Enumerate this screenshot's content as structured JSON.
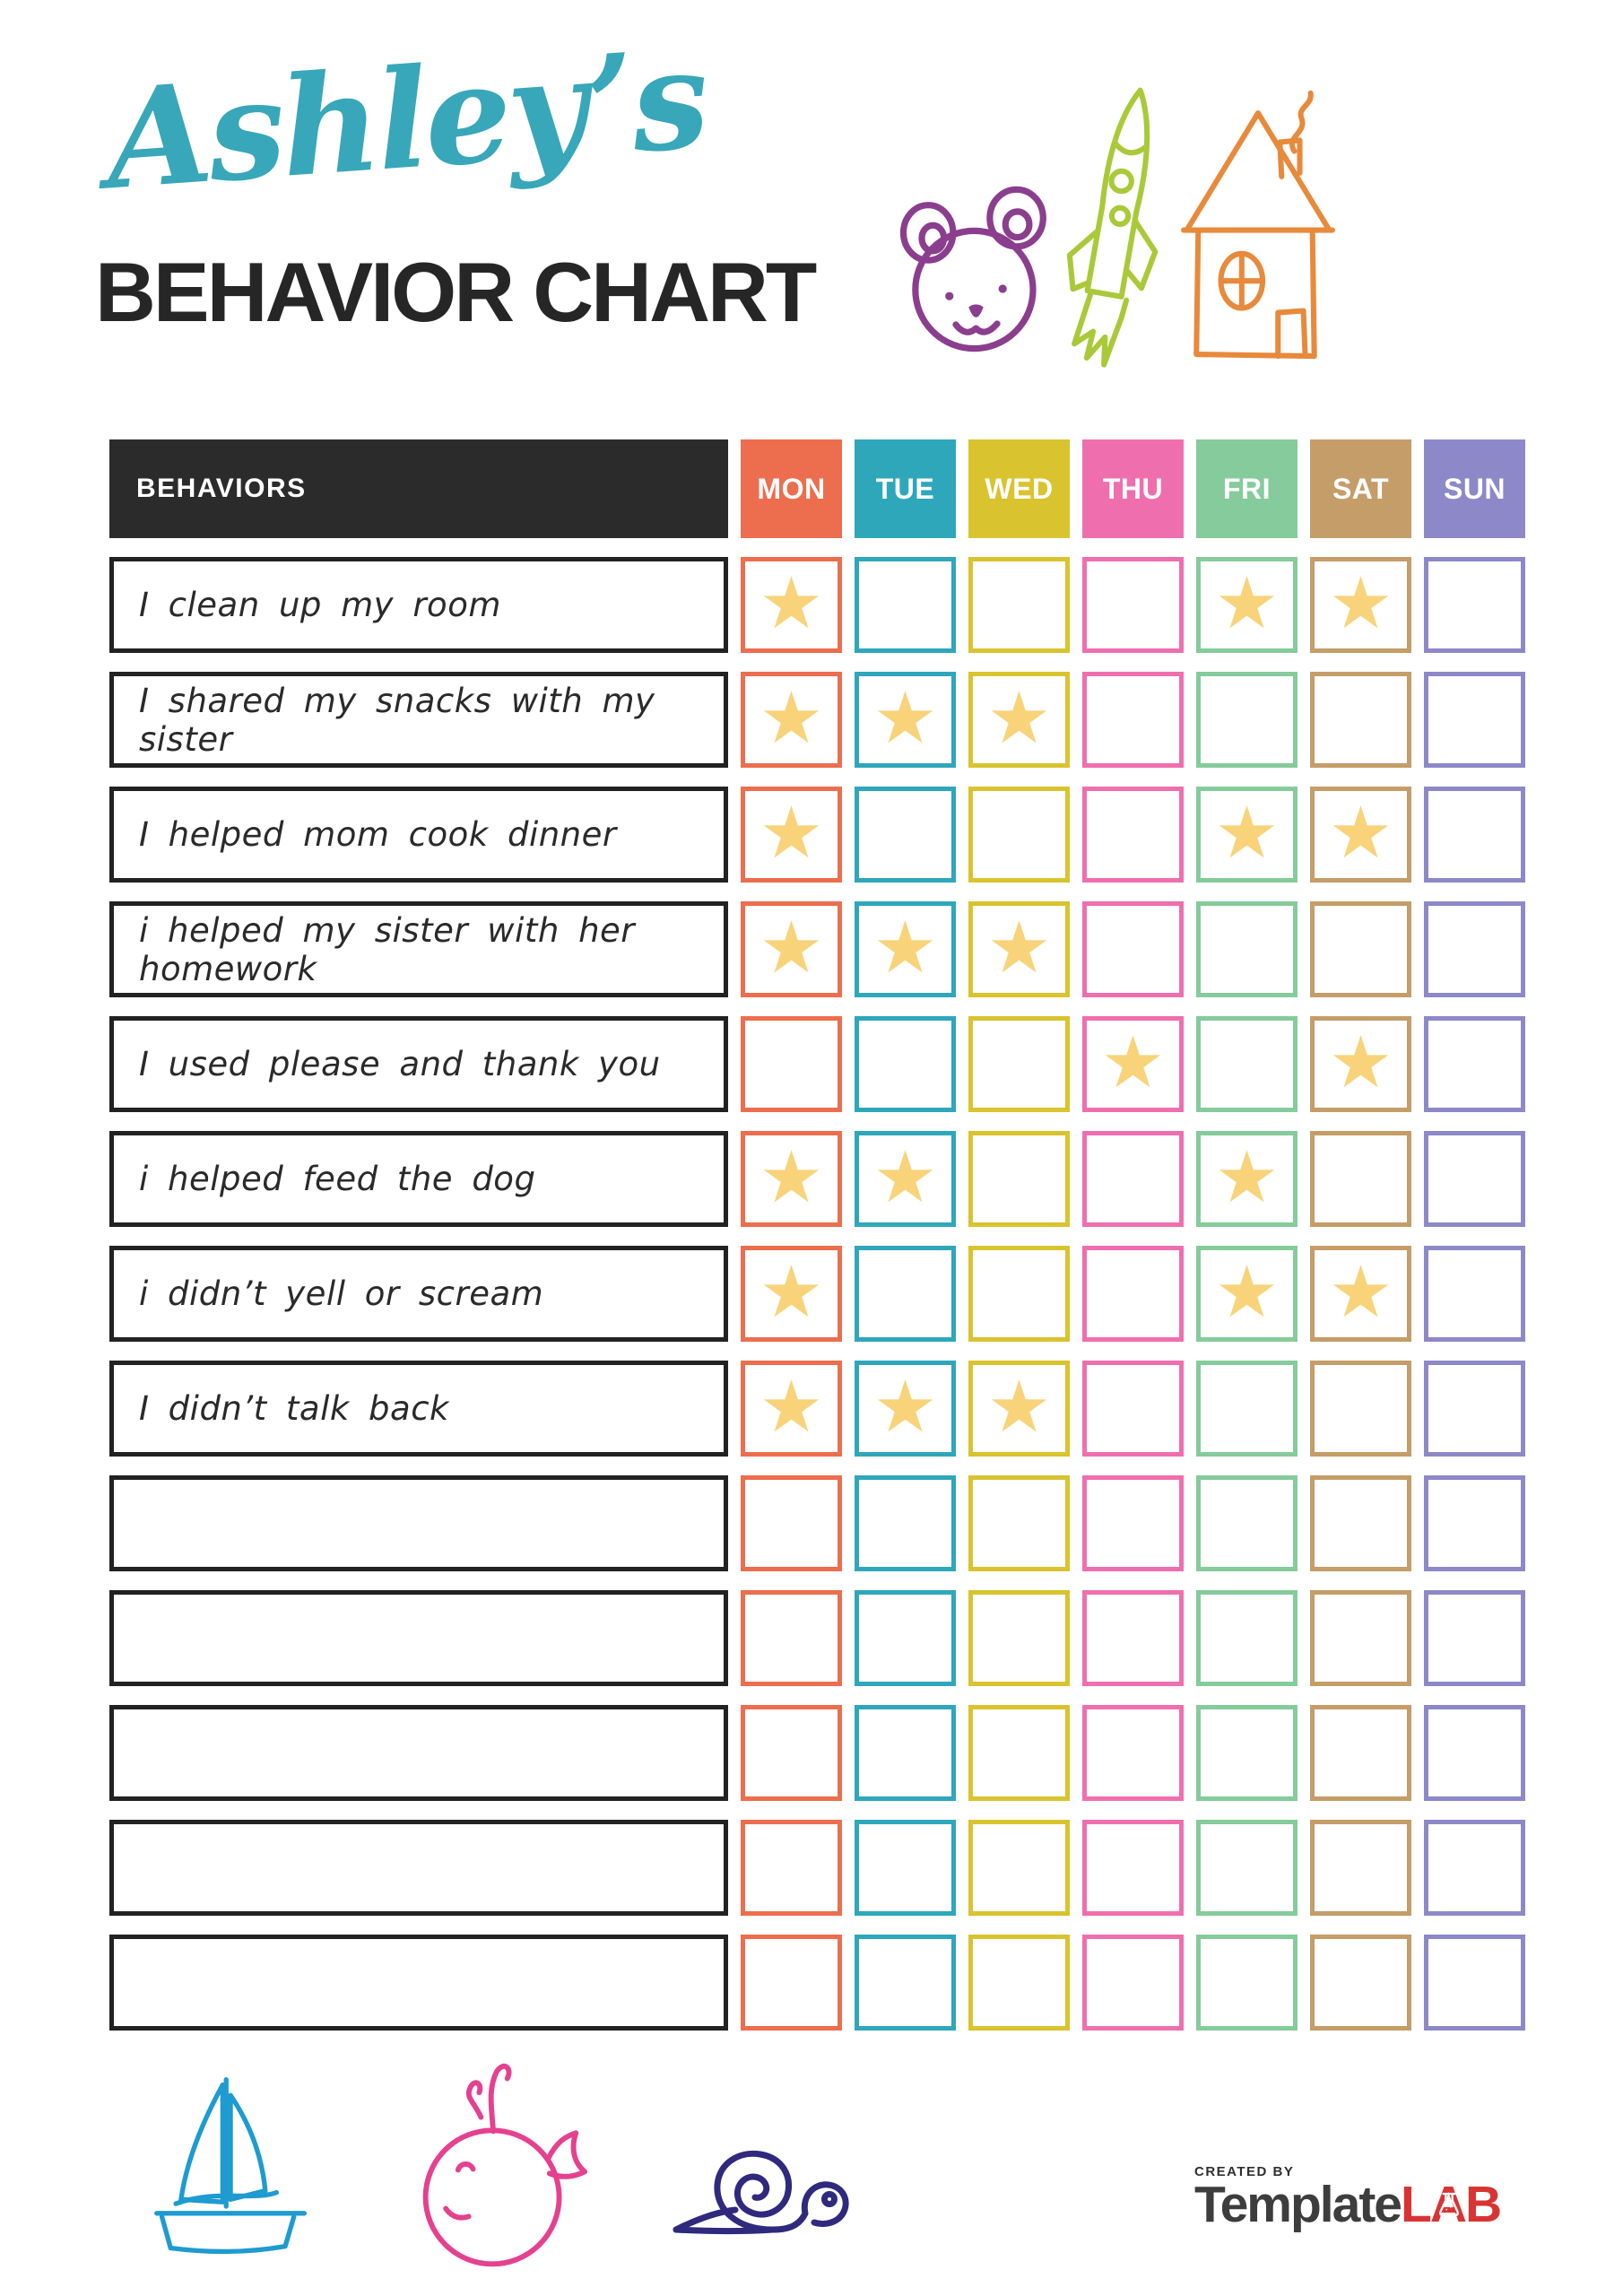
{
  "header": {
    "script_title": "Ashley’s",
    "main_title": "BEHAVIOR CHART"
  },
  "table": {
    "behaviors_header": "BEHAVIORS",
    "header_bg": "#2b2b2b",
    "row_border": "#222222",
    "days": [
      {
        "label": "MON",
        "color": "#ec6e4e"
      },
      {
        "label": "TUE",
        "color": "#2fa7bb"
      },
      {
        "label": "WED",
        "color": "#d9c32f"
      },
      {
        "label": "THU",
        "color": "#ef6fae"
      },
      {
        "label": "FRI",
        "color": "#85cb9b"
      },
      {
        "label": "SAT",
        "color": "#c49d68"
      },
      {
        "label": "SUN",
        "color": "#8d89c8"
      }
    ],
    "star": {
      "glyph": "★",
      "color": "#f8d37a"
    },
    "rows": [
      {
        "behavior": "I clean up my room",
        "stars": [
          true,
          false,
          false,
          false,
          true,
          true,
          false
        ]
      },
      {
        "behavior": "I shared my snacks with my sister",
        "stars": [
          true,
          true,
          true,
          false,
          false,
          false,
          false
        ]
      },
      {
        "behavior": "I helped mom cook dinner",
        "stars": [
          true,
          false,
          false,
          false,
          true,
          true,
          false
        ]
      },
      {
        "behavior": "i helped my sister with her homework",
        "stars": [
          true,
          true,
          true,
          false,
          false,
          false,
          false
        ]
      },
      {
        "behavior": "I used please and thank you",
        "stars": [
          false,
          false,
          false,
          true,
          false,
          true,
          false
        ]
      },
      {
        "behavior": "i helped feed the dog",
        "stars": [
          true,
          true,
          false,
          false,
          true,
          false,
          false
        ]
      },
      {
        "behavior": "i didn’t yell or scream",
        "stars": [
          true,
          false,
          false,
          false,
          true,
          true,
          false
        ]
      },
      {
        "behavior": "I didn’t talk back",
        "stars": [
          true,
          true,
          true,
          false,
          false,
          false,
          false
        ]
      },
      {
        "behavior": "",
        "stars": [
          false,
          false,
          false,
          false,
          false,
          false,
          false
        ]
      },
      {
        "behavior": "",
        "stars": [
          false,
          false,
          false,
          false,
          false,
          false,
          false
        ]
      },
      {
        "behavior": "",
        "stars": [
          false,
          false,
          false,
          false,
          false,
          false,
          false
        ]
      },
      {
        "behavior": "",
        "stars": [
          false,
          false,
          false,
          false,
          false,
          false,
          false
        ]
      },
      {
        "behavior": "",
        "stars": [
          false,
          false,
          false,
          false,
          false,
          false,
          false
        ]
      }
    ]
  },
  "decorations": {
    "top_icons": [
      "bear-icon",
      "rocket-icon",
      "house-icon"
    ],
    "bottom_icons": [
      "sailboat-icon",
      "whale-icon",
      "snail-icon"
    ],
    "colors": {
      "title_teal": "#38a7b9",
      "bear": "#8b3e8e",
      "rocket": "#aac939",
      "house": "#e78a3c",
      "sailboat": "#1e9bd0",
      "whale": "#e5418f",
      "snail": "#2f2a7d"
    }
  },
  "footer": {
    "created_by": "CREATED BY",
    "brand_template": "Template",
    "brand_lab": "LAB",
    "colors": {
      "template": "#3d3d3d",
      "lab": "#d93434",
      "created_by": "#2f2f2f"
    }
  }
}
